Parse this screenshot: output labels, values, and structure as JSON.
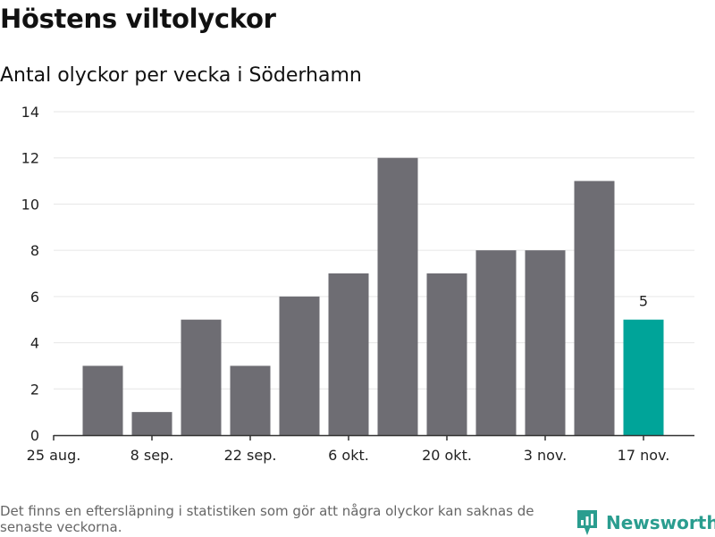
{
  "title": "Höstens viltolyckor",
  "subtitle": "Antal olyckor per vecka i Söderhamn",
  "footnote": "Det finns en eftersläpning i statistiken som gör att några olyckor kan saknas de senaste veckorna.",
  "brand": {
    "name": "Newsworthy",
    "icon": "newsworthy-logo-icon",
    "color": "#2a9d8f"
  },
  "colors": {
    "bar": "#6e6d73",
    "highlight": "#00a499",
    "grid": "#e6e6e6",
    "axis": "#333333"
  },
  "chart_data": {
    "type": "bar",
    "title": "Antal olyckor per vecka i Söderhamn",
    "xlabel": "",
    "ylabel": "",
    "ylim": [
      0,
      14
    ],
    "yticks": [
      0,
      2,
      4,
      6,
      8,
      10,
      12,
      14
    ],
    "xtick_labels": [
      "25 aug.",
      "8 sep.",
      "22 sep.",
      "6 okt.",
      "20 okt.",
      "3 nov.",
      "17 nov."
    ],
    "values": [
      3,
      1,
      5,
      3,
      6,
      7,
      12,
      7,
      8,
      8,
      11,
      5
    ],
    "highlight_index": 11,
    "highlight_label": "5",
    "grid": true
  }
}
